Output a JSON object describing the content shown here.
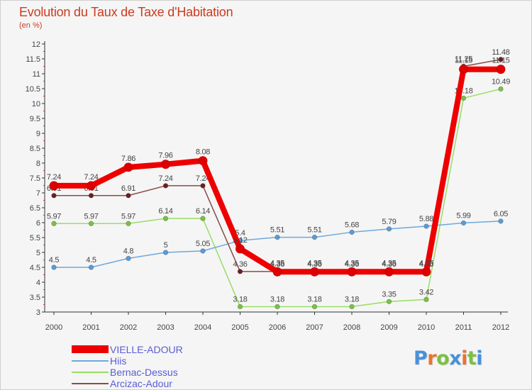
{
  "header": {
    "title": "Evolution du Taux de Taxe d'Habitation",
    "subtitle": "(en %)"
  },
  "brand": {
    "text": "Proxiti",
    "letter_colors": [
      "#4a90d9",
      "#e8742c",
      "#7ac143",
      "#4a90d9",
      "#e8742c",
      "#7ac143",
      "#4a90d9"
    ]
  },
  "colors": {
    "axis": "#333333",
    "tick_label": "#444444",
    "data_label": "#444444",
    "background": "#f5f5f5"
  },
  "chart_data": {
    "type": "line",
    "title": "Evolution du Taux de Taxe d'Habitation",
    "ylabel": "(en %)",
    "xlabel": "",
    "ylim": [
      3,
      12
    ],
    "ytick_step": 0.5,
    "grid": false,
    "legend_position": "bottom-left",
    "categories": [
      "2000",
      "2001",
      "2002",
      "2003",
      "2004",
      "2005",
      "2006",
      "2007",
      "2008",
      "2009",
      "2010",
      "2011",
      "2012"
    ],
    "yticks": [
      "3",
      "3.5",
      "4",
      "4.5",
      "5",
      "5.5",
      "6",
      "6.5",
      "7",
      "7.5",
      "8",
      "8.5",
      "9",
      "9.5",
      "10",
      "10.5",
      "11",
      "11.5",
      "12"
    ],
    "series": [
      {
        "name": "Bernac-Dessus",
        "color": "#99dd66",
        "marker_color": "#7ac143",
        "values": [
          5.97,
          5.97,
          5.97,
          6.14,
          6.14,
          3.18,
          3.18,
          3.18,
          3.18,
          3.35,
          3.42,
          10.18,
          10.49
        ],
        "labels": [
          "5.97",
          "5.97",
          "5.97",
          "6.14",
          "6.14",
          "3.18",
          "3.18",
          "3.18",
          "3.18",
          "3.35",
          "3.42",
          "10.18",
          "10.49"
        ]
      },
      {
        "name": "Hiis",
        "color": "#6fa8dc",
        "marker_color": "#5b9bd5",
        "values": [
          4.5,
          4.5,
          4.8,
          5.0,
          5.05,
          5.4,
          5.51,
          5.51,
          5.68,
          5.79,
          5.88,
          5.99,
          6.05
        ],
        "labels": [
          "4.5",
          "4.5",
          "4.8",
          "5",
          "5.05",
          "5.4",
          "5.51",
          "5.51",
          "5.68",
          "5.79",
          "5.88",
          "5.99",
          "6.05"
        ]
      },
      {
        "name": "Arcizac-Adour",
        "color": "#8b4a4a",
        "marker_color": "#6b1f1f",
        "values": [
          6.91,
          6.91,
          6.91,
          7.24,
          7.24,
          4.36,
          4.36,
          4.36,
          4.36,
          4.36,
          4.36,
          11.25,
          11.48
        ],
        "labels": [
          "6.91",
          "6.91",
          "6.91",
          "7.24",
          "7.24",
          "4.36",
          "4.36",
          "4.36",
          "4.36",
          "4.36",
          "4.36",
          "11.25",
          "11.48"
        ]
      },
      {
        "name": "VIELLE-ADOUR",
        "color": "#ee0000",
        "marker_color": "#dd0000",
        "thick": true,
        "values": [
          7.24,
          7.24,
          7.86,
          7.96,
          8.08,
          5.12,
          4.35,
          4.35,
          4.35,
          4.35,
          4.35,
          11.15,
          11.15
        ],
        "labels": [
          "7.24",
          "7.24",
          "7.86",
          "7.96",
          "8.08",
          "5.12",
          "4.35",
          "4.35",
          "4.35",
          "4.35",
          "4.35",
          "11.15",
          "11.15"
        ]
      }
    ],
    "legend_order": [
      "VIELLE-ADOUR",
      "Hiis",
      "Bernac-Dessus",
      "Arcizac-Adour"
    ]
  }
}
